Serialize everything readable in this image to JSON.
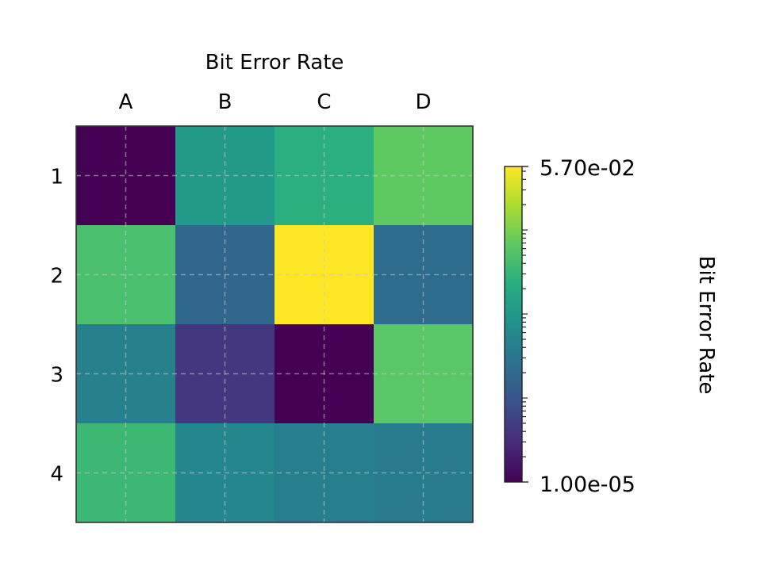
{
  "chart_data": {
    "type": "heatmap",
    "title": "Bit Error Rate",
    "x_categories": [
      "A",
      "B",
      "C",
      "D"
    ],
    "y_categories": [
      "1",
      "2",
      "3",
      "4"
    ],
    "x_axis_position": "top",
    "values": [
      [
        1e-05,
        0.0011,
        0.0024,
        0.0068
      ],
      [
        0.0045,
        0.00018,
        0.057,
        0.00022
      ],
      [
        0.00045,
        4e-05,
        1e-05,
        0.0062
      ],
      [
        0.0035,
        0.00055,
        0.00042,
        0.00036
      ]
    ],
    "colorbar": {
      "label": "Bit Error Rate",
      "scale": "log",
      "min": 1e-05,
      "max": 0.057,
      "min_label": "1.00e-05",
      "max_label": "5.70e-02",
      "position": "right"
    },
    "colormap": "viridis",
    "grid": true,
    "grid_style": "dashed"
  }
}
